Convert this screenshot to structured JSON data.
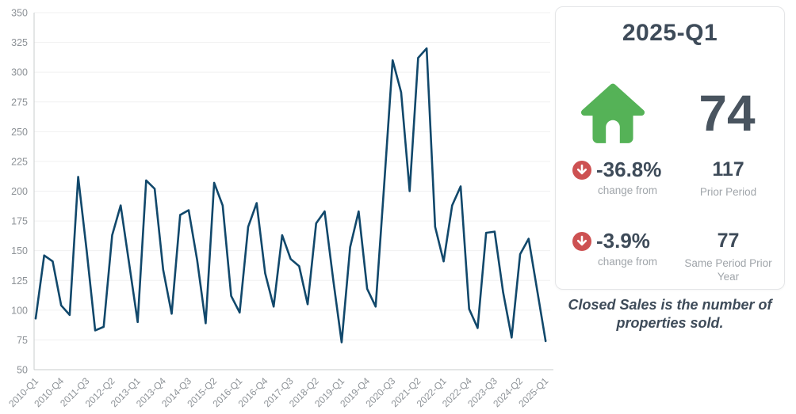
{
  "chart_data": {
    "type": "line",
    "title": "",
    "xlabel": "",
    "ylabel": "",
    "ylim": [
      50,
      350
    ],
    "ytick": 25,
    "x_tick_every": 3,
    "grid": "horizontal",
    "legend": "none",
    "categories": [
      "2010-Q1",
      "2010-Q2",
      "2010-Q3",
      "2010-Q4",
      "2011-Q1",
      "2011-Q2",
      "2011-Q3",
      "2011-Q4",
      "2012-Q1",
      "2012-Q2",
      "2012-Q3",
      "2012-Q4",
      "2013-Q1",
      "2013-Q2",
      "2013-Q3",
      "2013-Q4",
      "2014-Q1",
      "2014-Q2",
      "2014-Q3",
      "2014-Q4",
      "2015-Q1",
      "2015-Q2",
      "2015-Q3",
      "2015-Q4",
      "2016-Q1",
      "2016-Q2",
      "2016-Q3",
      "2016-Q4",
      "2017-Q1",
      "2017-Q2",
      "2017-Q3",
      "2017-Q4",
      "2018-Q1",
      "2018-Q2",
      "2018-Q3",
      "2018-Q4",
      "2019-Q1",
      "2019-Q2",
      "2019-Q3",
      "2019-Q4",
      "2020-Q1",
      "2020-Q2",
      "2020-Q3",
      "2020-Q4",
      "2021-Q1",
      "2021-Q2",
      "2021-Q3",
      "2021-Q4",
      "2022-Q1",
      "2022-Q2",
      "2022-Q3",
      "2022-Q4",
      "2023-Q1",
      "2023-Q2",
      "2023-Q3",
      "2023-Q4",
      "2024-Q1",
      "2024-Q2",
      "2024-Q3",
      "2024-Q4",
      "2025-Q1"
    ],
    "values": [
      93,
      146,
      141,
      104,
      96,
      212,
      150,
      83,
      86,
      163,
      188,
      139,
      90,
      209,
      202,
      134,
      97,
      180,
      184,
      142,
      89,
      207,
      188,
      112,
      98,
      170,
      190,
      131,
      103,
      163,
      143,
      137,
      105,
      173,
      183,
      126,
      73,
      153,
      183,
      118,
      103,
      205,
      310,
      283,
      200,
      312,
      320,
      170,
      141,
      188,
      204,
      101,
      85,
      165,
      166,
      115,
      77,
      147,
      160,
      117,
      74
    ]
  },
  "panel": {
    "title": "2025-Q1",
    "main_value": "74",
    "main_icon": "house",
    "rows": [
      {
        "change": "-36.8%",
        "change_label": "change from",
        "compare_value": "117",
        "compare_label": "Prior Period"
      },
      {
        "change": "-3.9%",
        "change_label": "change from",
        "compare_value": "77",
        "compare_label": "Same Period Prior Year"
      }
    ],
    "note": "Closed Sales is the number of properties sold."
  },
  "colors": {
    "line": "#11486b",
    "grid": "#f0f0f1",
    "axis": "#c9ccce",
    "tick_text": "#8d9297",
    "house_green": "#55b257",
    "arrow_red": "#cd5152",
    "dark_slate": "#3e4b59",
    "big_value_gray": "#49545f",
    "label_gray": "#a0a5aa"
  }
}
